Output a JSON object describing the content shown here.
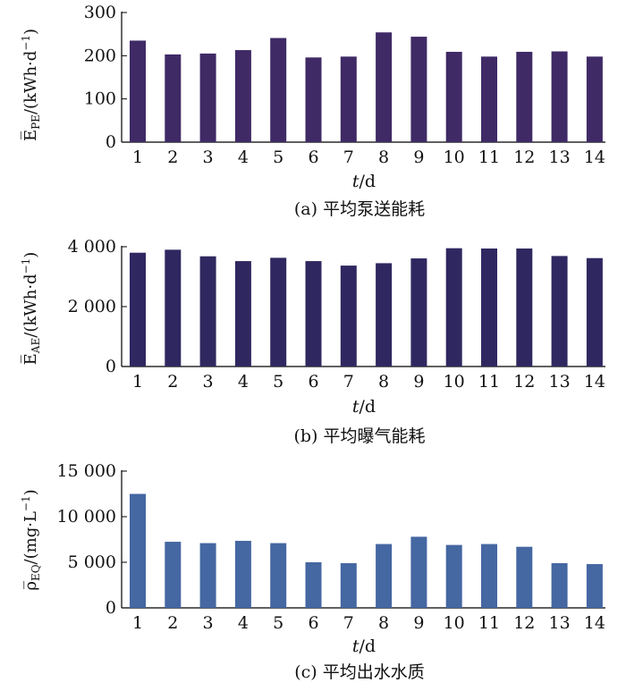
{
  "chart_data": [
    {
      "type": "bar",
      "id": "a",
      "caption": "(a) 平均泵送能耗",
      "xlabel": "t/d",
      "ylabel": "E̅PE/(kWh·d⁻¹)",
      "ylim": [
        0,
        300
      ],
      "yticks": [
        0,
        100,
        200,
        300
      ],
      "ytick_labels": [
        "0",
        "100",
        "200",
        "300"
      ],
      "categories": [
        "1",
        "2",
        "3",
        "4",
        "5",
        "6",
        "7",
        "8",
        "9",
        "10",
        "11",
        "12",
        "13",
        "14"
      ],
      "values": [
        235,
        203,
        205,
        213,
        241,
        196,
        198,
        254,
        244,
        209,
        198,
        209,
        210,
        198
      ],
      "color": "#3f2a66"
    },
    {
      "type": "bar",
      "id": "b",
      "caption": "(b) 平均曝气能耗",
      "xlabel": "t/d",
      "ylabel": "E̅AE/(kWh·d⁻¹)",
      "ylim": [
        0,
        4000
      ],
      "yticks": [
        0,
        2000,
        4000
      ],
      "ytick_labels": [
        "0",
        "2 000",
        "4 000"
      ],
      "categories": [
        "1",
        "2",
        "3",
        "4",
        "5",
        "6",
        "7",
        "8",
        "9",
        "10",
        "11",
        "12",
        "13",
        "14"
      ],
      "values": [
        3800,
        3900,
        3680,
        3520,
        3630,
        3520,
        3370,
        3450,
        3610,
        3950,
        3940,
        3940,
        3690,
        3620
      ],
      "color": "#2f2860"
    },
    {
      "type": "bar",
      "id": "c",
      "caption": "(c) 平均出水水质",
      "xlabel": "t/d",
      "ylabel": "ρ̅EQ/(mg·L⁻¹)",
      "ylim": [
        0,
        15000
      ],
      "yticks": [
        0,
        5000,
        10000,
        15000
      ],
      "ytick_labels": [
        "0",
        "5 000",
        "10 000",
        "15 000"
      ],
      "categories": [
        "1",
        "2",
        "3",
        "4",
        "5",
        "6",
        "7",
        "8",
        "9",
        "10",
        "11",
        "12",
        "13",
        "14"
      ],
      "values": [
        12500,
        7250,
        7100,
        7350,
        7100,
        5000,
        4900,
        7000,
        7800,
        6900,
        7000,
        6700,
        4900,
        4800
      ],
      "color": "#4567a2"
    }
  ]
}
